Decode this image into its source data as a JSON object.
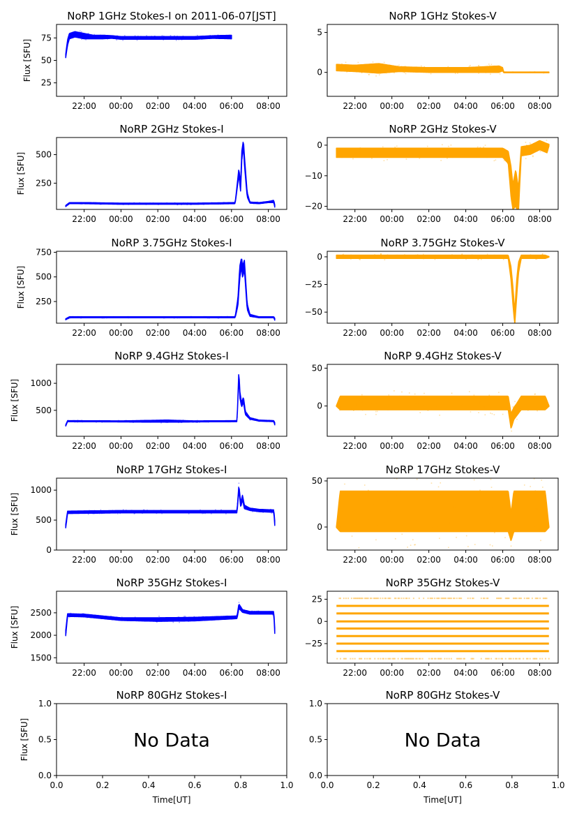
{
  "figure": {
    "date_label": "2011-06-07[JST]",
    "colors": {
      "stokes_i": "#0000ff",
      "stokes_v": "#ffa500",
      "axes": "#000000"
    }
  },
  "chart_data": [
    {
      "type": "scatter",
      "id": "i1",
      "title": "NoRP 1GHz Stokes-I on 2011-06-07[JST]",
      "ylabel": "Flux [SFU]",
      "xlabel": "",
      "ylim": [
        10,
        90
      ],
      "yticks": [
        25,
        50,
        75
      ],
      "xticks": [
        "22:00",
        "00:00",
        "02:00",
        "04:00",
        "06:00",
        "08:00"
      ],
      "x_hours_range": [
        20.5,
        33.0
      ],
      "series": [
        {
          "name": "Stokes-I",
          "color": "#0000ff",
          "x_hours": [
            21.0,
            21.1,
            21.2,
            21.5,
            22.0,
            22.5,
            23.0,
            23.5,
            24.0,
            25.0,
            26.0,
            27.0,
            28.0,
            29.0,
            30.0
          ],
          "y": [
            55,
            70,
            77,
            79,
            77,
            76,
            76,
            76,
            75,
            75,
            75,
            75,
            75,
            76,
            76
          ],
          "spread": [
            2,
            3,
            3,
            3,
            3,
            2,
            2,
            1.5,
            1.5,
            1.5,
            1.5,
            1.5,
            1.5,
            1.5,
            2
          ]
        }
      ]
    },
    {
      "type": "scatter",
      "id": "v1",
      "title": "NoRP 1GHz Stokes-V",
      "ylabel": "",
      "xlabel": "",
      "ylim": [
        -3,
        6
      ],
      "yticks": [
        0,
        5
      ],
      "xticks": [
        "22:00",
        "00:00",
        "02:00",
        "04:00",
        "06:00",
        "08:00"
      ],
      "x_hours_range": [
        20.5,
        33.0
      ],
      "series": [
        {
          "name": "Stokes-V",
          "color": "#ffa500",
          "x_hours": [
            21.0,
            22.0,
            23.3,
            24.4,
            26.0,
            28.0,
            29.8,
            30.0,
            30.05,
            32.5
          ],
          "y": [
            0.6,
            0.5,
            0.5,
            0.4,
            0.3,
            0.3,
            0.4,
            0.4,
            0.0,
            0.0
          ],
          "spread": [
            0.4,
            0.4,
            0.6,
            0.3,
            0.3,
            0.3,
            0.4,
            0.2,
            0.05,
            0.05
          ]
        }
      ]
    },
    {
      "type": "scatter",
      "id": "i2",
      "title": "NoRP 2GHz Stokes-I",
      "ylabel": "Flux [SFU]",
      "xlabel": "",
      "ylim": [
        20,
        650
      ],
      "yticks": [
        250,
        500
      ],
      "xticks": [
        "22:00",
        "00:00",
        "02:00",
        "04:00",
        "06:00",
        "08:00"
      ],
      "x_hours_range": [
        20.5,
        33.0
      ],
      "series": [
        {
          "name": "Stokes-I",
          "color": "#0000ff",
          "x_hours": [
            21.0,
            21.2,
            22.0,
            24.0,
            28.0,
            30.2,
            30.4,
            30.5,
            30.55,
            30.65,
            30.7,
            30.85,
            31.0,
            31.5,
            32.0,
            32.3,
            32.35
          ],
          "y": [
            50,
            75,
            75,
            70,
            70,
            75,
            350,
            200,
            480,
            600,
            450,
            150,
            80,
            75,
            85,
            90,
            50
          ],
          "spread": [
            5,
            5,
            5,
            5,
            5,
            5,
            30,
            30,
            40,
            30,
            40,
            20,
            5,
            5,
            5,
            10,
            10
          ]
        }
      ]
    },
    {
      "type": "scatter",
      "id": "v2",
      "title": "NoRP 2GHz Stokes-V",
      "ylabel": "",
      "xlabel": "",
      "ylim": [
        -21,
        2.5
      ],
      "yticks": [
        -20,
        -10,
        0
      ],
      "xticks": [
        "22:00",
        "00:00",
        "02:00",
        "04:00",
        "06:00",
        "08:00"
      ],
      "x_hours_range": [
        20.5,
        33.0
      ],
      "series": [
        {
          "name": "Stokes-V",
          "color": "#ffa500",
          "x_hours": [
            21.0,
            22.0,
            24.0,
            26.0,
            28.0,
            30.0,
            30.3,
            30.45,
            30.55,
            30.7,
            30.85,
            31.0,
            31.5,
            32.0,
            32.4,
            32.5
          ],
          "y": [
            -2.5,
            -2.5,
            -2.5,
            -2.5,
            -2.5,
            -2.5,
            -4,
            -12,
            -17,
            -14,
            -18,
            -2,
            -1.5,
            0,
            -1,
            0
          ],
          "spread": [
            1.5,
            1.5,
            1.5,
            1.5,
            1.5,
            1.5,
            2,
            5,
            4,
            6,
            4,
            1.5,
            1.5,
            1.5,
            1.5,
            0.3
          ]
        }
      ]
    },
    {
      "type": "scatter",
      "id": "i3",
      "title": "NoRP 3.75GHz Stokes-I",
      "ylabel": "Flux [SFU]",
      "xlabel": "",
      "ylim": [
        30,
        760
      ],
      "yticks": [
        250,
        500,
        750
      ],
      "xticks": [
        "22:00",
        "00:00",
        "02:00",
        "04:00",
        "06:00",
        "08:00"
      ],
      "x_hours_range": [
        20.5,
        33.0
      ],
      "series": [
        {
          "name": "Stokes-I",
          "color": "#0000ff",
          "x_hours": [
            21.0,
            21.2,
            24.0,
            28.0,
            30.2,
            30.35,
            30.45,
            30.55,
            30.6,
            30.7,
            30.85,
            31.0,
            31.5,
            32.3,
            32.35
          ],
          "y": [
            70,
            90,
            90,
            90,
            90,
            250,
            550,
            650,
            550,
            620,
            200,
            110,
            90,
            90,
            70
          ],
          "spread": [
            5,
            5,
            5,
            5,
            5,
            40,
            60,
            50,
            60,
            50,
            30,
            10,
            5,
            5,
            10
          ]
        }
      ]
    },
    {
      "type": "scatter",
      "id": "v3",
      "title": "NoRP 3.75GHz Stokes-V",
      "ylabel": "",
      "xlabel": "",
      "ylim": [
        -60,
        5
      ],
      "yticks": [
        -50,
        -25,
        0
      ],
      "xticks": [
        "22:00",
        "00:00",
        "02:00",
        "04:00",
        "06:00",
        "08:00"
      ],
      "x_hours_range": [
        20.5,
        33.0
      ],
      "series": [
        {
          "name": "Stokes-V",
          "color": "#ffa500",
          "x_hours": [
            21.0,
            24.0,
            28.0,
            30.3,
            30.45,
            30.55,
            30.65,
            30.75,
            30.85,
            31.0,
            32.3,
            32.5
          ],
          "y": [
            0,
            0,
            0,
            0,
            -15,
            -35,
            -55,
            -30,
            -10,
            0,
            0,
            0
          ],
          "spread": [
            1.5,
            1.5,
            1.5,
            1.5,
            6,
            8,
            6,
            8,
            5,
            1.5,
            1.5,
            0.3
          ]
        }
      ]
    },
    {
      "type": "scatter",
      "id": "i4",
      "title": "NoRP 9.4GHz Stokes-I",
      "ylabel": "Flux [SFU]",
      "xlabel": "",
      "ylim": [
        20,
        1350
      ],
      "yticks": [
        500,
        1000
      ],
      "xticks": [
        "22:00",
        "00:00",
        "02:00",
        "04:00",
        "06:00",
        "08:00"
      ],
      "x_hours_range": [
        20.5,
        33.0
      ],
      "series": [
        {
          "name": "Stokes-I",
          "color": "#0000ff",
          "x_hours": [
            21.0,
            21.1,
            24.0,
            26.5,
            28.0,
            30.3,
            30.4,
            30.45,
            30.55,
            30.65,
            30.75,
            31.0,
            31.5,
            32.3,
            32.35
          ],
          "y": [
            220,
            300,
            295,
            300,
            295,
            300,
            1200,
            800,
            600,
            700,
            450,
            350,
            310,
            300,
            250
          ],
          "spread": [
            10,
            10,
            10,
            20,
            10,
            10,
            60,
            60,
            40,
            50,
            30,
            15,
            10,
            10,
            20
          ]
        }
      ]
    },
    {
      "type": "scatter",
      "id": "v4",
      "title": "NoRP 9.4GHz Stokes-V",
      "ylabel": "",
      "xlabel": "",
      "ylim": [
        -40,
        55
      ],
      "yticks": [
        0,
        50
      ],
      "xticks": [
        "22:00",
        "00:00",
        "02:00",
        "04:00",
        "06:00",
        "08:00"
      ],
      "x_hours_range": [
        20.5,
        33.0
      ],
      "series": [
        {
          "name": "Stokes-V",
          "color": "#ffa500",
          "x_hours": [
            21.0,
            21.2,
            24.0,
            28.0,
            30.3,
            30.45,
            30.6,
            30.75,
            31.0,
            32.3,
            32.5
          ],
          "y": [
            0,
            4,
            4,
            4,
            4,
            -20,
            -10,
            -5,
            4,
            4,
            0
          ],
          "spread": [
            0.5,
            9,
            9,
            9,
            9,
            10,
            8,
            8,
            9,
            9,
            0.5
          ]
        }
      ]
    },
    {
      "type": "scatter",
      "id": "i5",
      "title": "NoRP 17GHz Stokes-I",
      "ylabel": "Flux [SFU]",
      "xlabel": "",
      "ylim": [
        0,
        1200
      ],
      "yticks": [
        0,
        500,
        1000
      ],
      "xticks": [
        "22:00",
        "00:00",
        "02:00",
        "04:00",
        "06:00",
        "08:00"
      ],
      "x_hours_range": [
        20.5,
        33.0
      ],
      "series": [
        {
          "name": "Stokes-I",
          "color": "#0000ff",
          "x_hours": [
            21.0,
            21.1,
            24.0,
            28.0,
            30.3,
            30.4,
            30.5,
            30.6,
            30.7,
            31.0,
            31.5,
            32.3,
            32.35
          ],
          "y": [
            400,
            630,
            640,
            640,
            640,
            1050,
            750,
            880,
            720,
            680,
            660,
            650,
            450
          ],
          "spread": [
            30,
            20,
            20,
            20,
            20,
            40,
            40,
            40,
            30,
            20,
            20,
            20,
            40
          ]
        }
      ]
    },
    {
      "type": "scatter",
      "id": "v5",
      "title": "NoRP 17GHz Stokes-V",
      "ylabel": "",
      "xlabel": "",
      "ylim": [
        -25,
        53
      ],
      "yticks": [
        0,
        50
      ],
      "xticks": [
        "22:00",
        "00:00",
        "02:00",
        "04:00",
        "06:00",
        "08:00"
      ],
      "x_hours_range": [
        20.5,
        33.0
      ],
      "series": [
        {
          "name": "Stokes-V",
          "color": "#ffa500",
          "x_hours": [
            21.0,
            21.2,
            24.0,
            28.0,
            30.3,
            30.45,
            30.6,
            31.0,
            32.3,
            32.5
          ],
          "y": [
            0,
            17,
            17,
            17,
            17,
            0,
            17,
            17,
            17,
            0
          ],
          "spread": [
            0.5,
            22,
            22,
            22,
            22,
            15,
            22,
            22,
            22,
            0.5
          ]
        }
      ]
    },
    {
      "type": "scatter",
      "id": "i6",
      "title": "NoRP 35GHz Stokes-I",
      "ylabel": "Flux [SFU]",
      "xlabel": "",
      "ylim": [
        1380,
        2980
      ],
      "yticks": [
        1500,
        2000,
        2500
      ],
      "xticks": [
        "22:00",
        "00:00",
        "02:00",
        "04:00",
        "06:00",
        "08:00"
      ],
      "x_hours_range": [
        20.5,
        33.0
      ],
      "series": [
        {
          "name": "Stokes-I",
          "color": "#0000ff",
          "x_hours": [
            21.0,
            21.1,
            22.0,
            24.0,
            26.0,
            28.0,
            30.3,
            30.4,
            30.6,
            31.0,
            32.3,
            32.35
          ],
          "y": [
            2050,
            2450,
            2440,
            2360,
            2350,
            2360,
            2400,
            2650,
            2540,
            2500,
            2500,
            2100
          ],
          "spread": [
            60,
            30,
            30,
            30,
            40,
            40,
            30,
            50,
            30,
            30,
            30,
            60
          ]
        }
      ]
    },
    {
      "type": "scatter",
      "id": "v6",
      "title": "NoRP 35GHz Stokes-V",
      "ylabel": "",
      "xlabel": "",
      "ylim": [
        -47,
        34
      ],
      "yticks": [
        -25,
        0,
        25
      ],
      "xticks": [
        "22:00",
        "00:00",
        "02:00",
        "04:00",
        "06:00",
        "08:00"
      ],
      "x_hours_range": [
        20.5,
        33.0
      ],
      "series": [
        {
          "name": "Stokes-V",
          "color": "#ffa500",
          "x_hours_start": 21.0,
          "x_hours_end": 32.5,
          "levels": [
            26,
            17.5,
            9,
            0,
            -8,
            -16.5,
            -25,
            -33.5,
            -42
          ],
          "level_density": [
            "sparse",
            "solid",
            "solid",
            "solid",
            "solid",
            "solid",
            "solid",
            "solid",
            "sparse"
          ]
        }
      ]
    },
    {
      "type": "scatter",
      "id": "i7",
      "title": "NoRP 80GHz Stokes-I",
      "ylabel": "Flux [SFU]",
      "xlabel": "Time[UT]",
      "ylim": [
        0,
        1
      ],
      "yticks": [
        "0.0",
        "0.5",
        "1.0"
      ],
      "xticks": [
        "0.0",
        "0.2",
        "0.4",
        "0.6",
        "0.8",
        "1.0"
      ],
      "annotation": "No Data",
      "series": []
    },
    {
      "type": "scatter",
      "id": "v7",
      "title": "NoRP 80GHz Stokes-V",
      "ylabel": "",
      "xlabel": "Time[UT]",
      "ylim": [
        0,
        1
      ],
      "yticks": [
        "0.0",
        "0.5",
        "1.0"
      ],
      "xticks": [
        "0.0",
        "0.2",
        "0.4",
        "0.6",
        "0.8",
        "1.0"
      ],
      "annotation": "No Data",
      "series": []
    }
  ]
}
